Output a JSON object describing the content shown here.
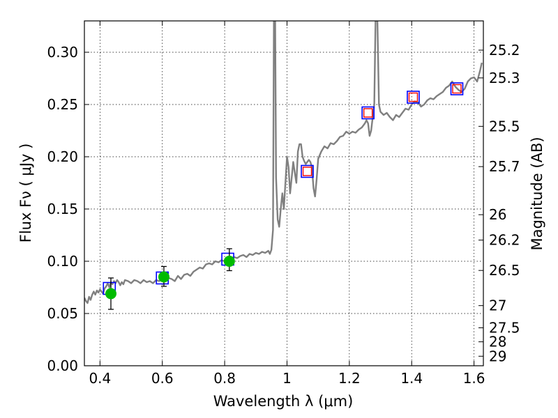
{
  "chart_data": {
    "type": "line",
    "xlabel": "Wavelength  λ (μm)",
    "ylabel": "Flux  Fν  ( μJy )",
    "y2label": "Magnitude (AB)",
    "xlim": [
      0.35,
      1.63
    ],
    "ylim": [
      0.0,
      0.33
    ],
    "grid": true,
    "x_ticks": [
      {
        "value": 0.4,
        "label": "0.4"
      },
      {
        "value": 0.6,
        "label": "0.6"
      },
      {
        "value": 0.8,
        "label": "0.8"
      },
      {
        "value": 1.0,
        "label": "1"
      },
      {
        "value": 1.2,
        "label": "1.2"
      },
      {
        "value": 1.4,
        "label": "1.4"
      },
      {
        "value": 1.6,
        "label": "1.6"
      }
    ],
    "y_ticks": [
      {
        "value": 0.0,
        "label": "0.00"
      },
      {
        "value": 0.05,
        "label": "0.05"
      },
      {
        "value": 0.1,
        "label": "0.10"
      },
      {
        "value": 0.15,
        "label": "0.15"
      },
      {
        "value": 0.2,
        "label": "0.20"
      },
      {
        "value": 0.25,
        "label": "0.25"
      },
      {
        "value": 0.3,
        "label": "0.30"
      }
    ],
    "mag_ticks": [
      {
        "value": 25.2,
        "label": "25.2"
      },
      {
        "value": 25.3,
        "label": "25.3"
      },
      {
        "value": 25.5,
        "label": "25.5"
      },
      {
        "value": 25.7,
        "label": "25.7"
      },
      {
        "value": 26.0,
        "label": "26"
      },
      {
        "value": 26.2,
        "label": "26.2"
      },
      {
        "value": 26.5,
        "label": "26.5"
      },
      {
        "value": 27.0,
        "label": "27"
      },
      {
        "value": 27.5,
        "label": "27.5"
      },
      {
        "value": 28.0,
        "label": "28"
      },
      {
        "value": 29.0,
        "label": "29"
      }
    ],
    "spectrum": {
      "color": "#808080",
      "points": [
        [
          0.35,
          0.065
        ],
        [
          0.355,
          0.062
        ],
        [
          0.36,
          0.06
        ],
        [
          0.365,
          0.066
        ],
        [
          0.37,
          0.063
        ],
        [
          0.375,
          0.068
        ],
        [
          0.38,
          0.071
        ],
        [
          0.385,
          0.068
        ],
        [
          0.39,
          0.072
        ],
        [
          0.395,
          0.07
        ],
        [
          0.4,
          0.073
        ],
        [
          0.405,
          0.071
        ],
        [
          0.41,
          0.069
        ],
        [
          0.415,
          0.074
        ],
        [
          0.42,
          0.076
        ],
        [
          0.425,
          0.079
        ],
        [
          0.43,
          0.075
        ],
        [
          0.435,
          0.08
        ],
        [
          0.44,
          0.078
        ],
        [
          0.445,
          0.081
        ],
        [
          0.45,
          0.079
        ],
        [
          0.455,
          0.082
        ],
        [
          0.46,
          0.08
        ],
        [
          0.465,
          0.077
        ],
        [
          0.47,
          0.08
        ],
        [
          0.475,
          0.078
        ],
        [
          0.48,
          0.082
        ],
        [
          0.49,
          0.081
        ],
        [
          0.5,
          0.079
        ],
        [
          0.51,
          0.082
        ],
        [
          0.52,
          0.081
        ],
        [
          0.53,
          0.079
        ],
        [
          0.54,
          0.082
        ],
        [
          0.55,
          0.08
        ],
        [
          0.56,
          0.081
        ],
        [
          0.57,
          0.079
        ],
        [
          0.58,
          0.082
        ],
        [
          0.59,
          0.081
        ],
        [
          0.6,
          0.083
        ],
        [
          0.61,
          0.082
        ],
        [
          0.62,
          0.084
        ],
        [
          0.63,
          0.083
        ],
        [
          0.64,
          0.081
        ],
        [
          0.65,
          0.086
        ],
        [
          0.66,
          0.083
        ],
        [
          0.67,
          0.087
        ],
        [
          0.68,
          0.088
        ],
        [
          0.69,
          0.086
        ],
        [
          0.7,
          0.09
        ],
        [
          0.71,
          0.092
        ],
        [
          0.72,
          0.094
        ],
        [
          0.73,
          0.093
        ],
        [
          0.74,
          0.097
        ],
        [
          0.75,
          0.098
        ],
        [
          0.76,
          0.097
        ],
        [
          0.77,
          0.1
        ],
        [
          0.78,
          0.099
        ],
        [
          0.79,
          0.101
        ],
        [
          0.8,
          0.1
        ],
        [
          0.81,
          0.102
        ],
        [
          0.82,
          0.103
        ],
        [
          0.83,
          0.104
        ],
        [
          0.84,
          0.103
        ],
        [
          0.85,
          0.105
        ],
        [
          0.86,
          0.106
        ],
        [
          0.87,
          0.104
        ],
        [
          0.88,
          0.107
        ],
        [
          0.89,
          0.106
        ],
        [
          0.9,
          0.108
        ],
        [
          0.91,
          0.107
        ],
        [
          0.92,
          0.109
        ],
        [
          0.93,
          0.108
        ],
        [
          0.94,
          0.11
        ],
        [
          0.945,
          0.107
        ],
        [
          0.95,
          0.111
        ],
        [
          0.955,
          0.13
        ],
        [
          0.958,
          0.33
        ],
        [
          0.962,
          0.33
        ],
        [
          0.965,
          0.18
        ],
        [
          0.97,
          0.14
        ],
        [
          0.975,
          0.133
        ],
        [
          0.98,
          0.15
        ],
        [
          0.985,
          0.165
        ],
        [
          0.99,
          0.15
        ],
        [
          0.995,
          0.175
        ],
        [
          1.0,
          0.2
        ],
        [
          1.005,
          0.19
        ],
        [
          1.01,
          0.165
        ],
        [
          1.015,
          0.18
        ],
        [
          1.02,
          0.195
        ],
        [
          1.025,
          0.185
        ],
        [
          1.03,
          0.175
        ],
        [
          1.035,
          0.205
        ],
        [
          1.04,
          0.212
        ],
        [
          1.045,
          0.212
        ],
        [
          1.05,
          0.2
        ],
        [
          1.055,
          0.196
        ],
        [
          1.06,
          0.193
        ],
        [
          1.065,
          0.195
        ],
        [
          1.07,
          0.197
        ],
        [
          1.075,
          0.195
        ],
        [
          1.08,
          0.19
        ],
        [
          1.085,
          0.17
        ],
        [
          1.09,
          0.162
        ],
        [
          1.095,
          0.178
        ],
        [
          1.1,
          0.198
        ],
        [
          1.11,
          0.205
        ],
        [
          1.12,
          0.21
        ],
        [
          1.13,
          0.208
        ],
        [
          1.14,
          0.213
        ],
        [
          1.15,
          0.212
        ],
        [
          1.16,
          0.215
        ],
        [
          1.17,
          0.219
        ],
        [
          1.18,
          0.22
        ],
        [
          1.19,
          0.224
        ],
        [
          1.2,
          0.222
        ],
        [
          1.21,
          0.224
        ],
        [
          1.22,
          0.223
        ],
        [
          1.23,
          0.226
        ],
        [
          1.24,
          0.228
        ],
        [
          1.25,
          0.232
        ],
        [
          1.255,
          0.235
        ],
        [
          1.26,
          0.232
        ],
        [
          1.265,
          0.22
        ],
        [
          1.27,
          0.225
        ],
        [
          1.275,
          0.238
        ],
        [
          1.28,
          0.25
        ],
        [
          1.284,
          0.33
        ],
        [
          1.29,
          0.33
        ],
        [
          1.295,
          0.25
        ],
        [
          1.3,
          0.243
        ],
        [
          1.31,
          0.24
        ],
        [
          1.32,
          0.242
        ],
        [
          1.33,
          0.238
        ],
        [
          1.34,
          0.235
        ],
        [
          1.35,
          0.24
        ],
        [
          1.36,
          0.238
        ],
        [
          1.37,
          0.242
        ],
        [
          1.38,
          0.246
        ],
        [
          1.39,
          0.245
        ],
        [
          1.4,
          0.25
        ],
        [
          1.41,
          0.253
        ],
        [
          1.42,
          0.252
        ],
        [
          1.43,
          0.248
        ],
        [
          1.44,
          0.25
        ],
        [
          1.45,
          0.254
        ],
        [
          1.46,
          0.256
        ],
        [
          1.47,
          0.255
        ],
        [
          1.48,
          0.258
        ],
        [
          1.49,
          0.26
        ],
        [
          1.5,
          0.262
        ],
        [
          1.51,
          0.266
        ],
        [
          1.52,
          0.268
        ],
        [
          1.53,
          0.272
        ],
        [
          1.54,
          0.267
        ],
        [
          1.55,
          0.264
        ],
        [
          1.56,
          0.262
        ],
        [
          1.57,
          0.265
        ],
        [
          1.58,
          0.272
        ],
        [
          1.59,
          0.275
        ],
        [
          1.6,
          0.276
        ],
        [
          1.61,
          0.272
        ],
        [
          1.62,
          0.283
        ],
        [
          1.625,
          0.29
        ]
      ]
    },
    "model_photometry_blue": {
      "color": "#0000ff",
      "points": [
        [
          0.43,
          0.074
        ],
        [
          0.6,
          0.084
        ],
        [
          0.81,
          0.102
        ],
        [
          1.065,
          0.186
        ],
        [
          1.26,
          0.242
        ],
        [
          1.405,
          0.257
        ],
        [
          1.545,
          0.265
        ]
      ]
    },
    "model_photometry_red": {
      "color": "#ff0000",
      "points": [
        [
          1.065,
          0.186
        ],
        [
          1.26,
          0.242
        ],
        [
          1.405,
          0.257
        ],
        [
          1.545,
          0.265
        ]
      ]
    },
    "observed_photometry": {
      "color": "#00bb00",
      "points": [
        {
          "x": 0.435,
          "y": 0.069,
          "yerr_low": 0.054,
          "yerr_high": 0.084
        },
        {
          "x": 0.605,
          "y": 0.085,
          "yerr_low": 0.076,
          "yerr_high": 0.095
        },
        {
          "x": 0.815,
          "y": 0.1,
          "yerr_low": 0.091,
          "yerr_high": 0.112
        }
      ]
    }
  }
}
